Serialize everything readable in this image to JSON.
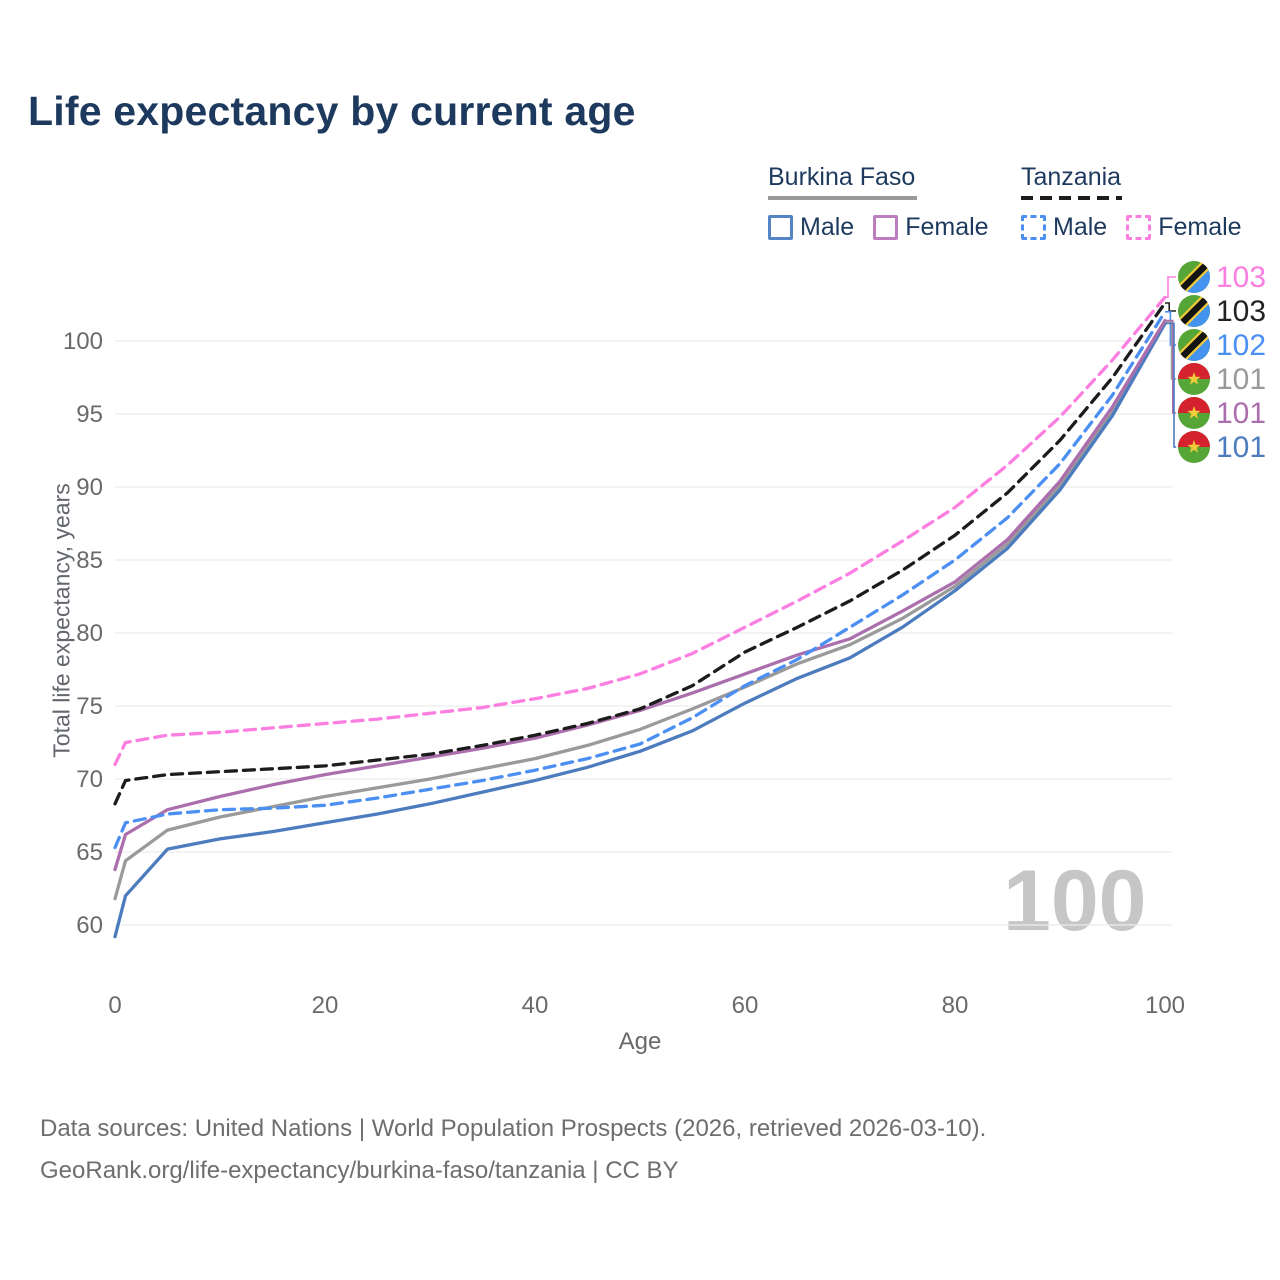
{
  "header": {
    "title": "Life expectancy by current age"
  },
  "legend": {
    "groups": [
      {
        "label": "Burkina Faso",
        "underline_style": "solid",
        "underline_color": "#9a9a9a",
        "items": [
          {
            "label": "Male",
            "color": "#5585c6",
            "dash": false
          },
          {
            "label": "Female",
            "color": "#bd7ec0",
            "dash": false
          }
        ]
      },
      {
        "label": "Tanzania",
        "underline_style": "dashed",
        "underline_color": "#1c1c1c",
        "items": [
          {
            "label": "Male",
            "color": "#4b8ff2",
            "dash": true
          },
          {
            "label": "Female",
            "color": "#fc7ee0",
            "dash": true
          }
        ]
      }
    ]
  },
  "chart_data": {
    "type": "line",
    "title": "Life expectancy by current age",
    "xlabel": "Age",
    "ylabel": "Total life expectancy, years",
    "x_ticks": [
      0,
      20,
      40,
      60,
      80,
      100
    ],
    "y_ticks": [
      60,
      65,
      70,
      75,
      80,
      85,
      90,
      95,
      100
    ],
    "xlim": [
      0,
      100
    ],
    "ylim": [
      60,
      100
    ],
    "grid": "horizontal",
    "legend_position": "top-right",
    "watermark": "100",
    "ages": [
      0,
      1,
      5,
      10,
      15,
      20,
      25,
      30,
      35,
      40,
      45,
      50,
      55,
      60,
      65,
      70,
      75,
      80,
      85,
      90,
      95,
      100
    ],
    "series": [
      {
        "name": "bf_both",
        "country": "Burkina Faso",
        "sex": "Both",
        "color": "#9a9a9a",
        "dash": false,
        "values": [
          61.8,
          64.4,
          66.5,
          67.4,
          68.1,
          68.8,
          69.4,
          70.0,
          70.7,
          71.4,
          72.3,
          73.4,
          74.8,
          76.3,
          77.9,
          79.2,
          81.0,
          83.2,
          86.1,
          90.1,
          95.2,
          101.3
        ]
      },
      {
        "name": "bf_male",
        "country": "Burkina Faso",
        "sex": "Male",
        "color": "#4d7cbe",
        "dash": false,
        "values": [
          59.2,
          62.0,
          65.2,
          65.9,
          66.4,
          67.0,
          67.6,
          68.3,
          69.1,
          69.9,
          70.8,
          71.9,
          73.3,
          75.2,
          76.9,
          78.3,
          80.4,
          82.9,
          85.8,
          89.8,
          94.9,
          101.2
        ]
      },
      {
        "name": "bf_female",
        "country": "Burkina Faso",
        "sex": "Female",
        "color": "#ac6fae",
        "dash": false,
        "values": [
          63.8,
          66.2,
          67.9,
          68.8,
          69.6,
          70.3,
          70.9,
          71.5,
          72.1,
          72.8,
          73.7,
          74.7,
          75.9,
          77.2,
          78.5,
          79.6,
          81.5,
          83.5,
          86.4,
          90.4,
          95.5,
          101.4
        ]
      },
      {
        "name": "tz_both",
        "country": "Tanzania",
        "sex": "Both",
        "color": "#1c1c1c",
        "dash": true,
        "values": [
          68.3,
          69.9,
          70.3,
          70.5,
          70.7,
          70.9,
          71.3,
          71.7,
          72.3,
          73.0,
          73.8,
          74.8,
          76.4,
          78.7,
          80.4,
          82.2,
          84.3,
          86.7,
          89.6,
          93.2,
          97.5,
          102.6
        ]
      },
      {
        "name": "tz_male",
        "country": "Tanzania",
        "sex": "Male",
        "color": "#4b8ff2",
        "dash": true,
        "values": [
          65.3,
          67.0,
          67.6,
          67.9,
          68.0,
          68.2,
          68.7,
          69.3,
          69.9,
          70.6,
          71.4,
          72.4,
          74.2,
          76.4,
          78.2,
          80.4,
          82.6,
          85.0,
          87.9,
          91.6,
          96.3,
          102.0
        ]
      },
      {
        "name": "tz_female",
        "country": "Tanzania",
        "sex": "Female",
        "color": "#fc7ee0",
        "dash": true,
        "values": [
          71.0,
          72.5,
          73.0,
          73.2,
          73.5,
          73.8,
          74.1,
          74.5,
          74.9,
          75.5,
          76.2,
          77.2,
          78.6,
          80.4,
          82.2,
          84.1,
          86.3,
          88.6,
          91.5,
          94.8,
          98.7,
          103.0
        ]
      }
    ],
    "end_labels": [
      {
        "flag": "tanzania",
        "series": "tz_female",
        "value": "103",
        "color": "#fc7ee0"
      },
      {
        "flag": "tanzania",
        "series": "tz_both",
        "value": "103",
        "color": "#222222"
      },
      {
        "flag": "tanzania",
        "series": "tz_male",
        "value": "102",
        "color": "#4b8ff2"
      },
      {
        "flag": "burkina-faso",
        "series": "bf_both",
        "value": "101",
        "color": "#9a9a9a"
      },
      {
        "flag": "burkina-faso",
        "series": "bf_female",
        "value": "101",
        "color": "#ac6fae"
      },
      {
        "flag": "burkina-faso",
        "series": "bf_male",
        "value": "101",
        "color": "#4d7cbe"
      }
    ]
  },
  "footer": {
    "line1": "Data sources: United Nations | World Population Prospects (2026, retrieved 2026-03-10).",
    "line2": "GeoRank.org/life-expectancy/burkina-faso/tanzania | CC BY"
  }
}
